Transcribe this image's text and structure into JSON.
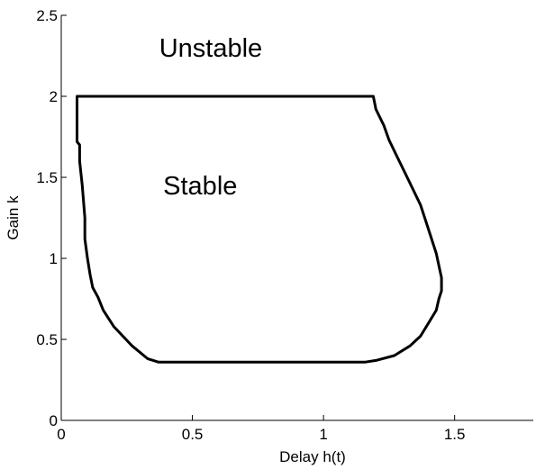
{
  "chart_data": {
    "type": "line",
    "title": "",
    "xlabel": "Delay h(t)",
    "ylabel": "Gain k",
    "xlim": [
      0,
      1.8
    ],
    "ylim": [
      0,
      2.5
    ],
    "xticks": [
      0,
      0.5,
      1,
      1.5
    ],
    "xtick_labels": [
      "0",
      "0.5",
      "1",
      "1.5"
    ],
    "yticks": [
      0,
      0.5,
      1,
      1.5,
      2,
      2.5
    ],
    "ytick_labels": [
      "0",
      "0.5",
      "1",
      "1.5",
      "2",
      "2.5"
    ],
    "grid": false,
    "legend": false,
    "colors": {
      "line": "#000000",
      "axes": "#000000",
      "background": "#ffffff"
    },
    "series": [
      {
        "x": [
          0.07,
          0.07,
          0.06,
          0.06,
          1.19,
          1.2,
          1.23,
          1.25,
          1.28,
          1.31,
          1.34,
          1.37,
          1.4,
          1.43,
          1.45,
          1.45,
          1.44,
          1.43,
          1.4,
          1.37,
          1.33,
          1.27,
          1.2,
          1.16,
          0.37,
          0.33,
          0.27,
          0.2,
          0.16,
          0.14,
          0.12,
          0.11,
          0.1,
          0.09,
          0.09,
          0.08
        ],
        "y": [
          1.6,
          1.7,
          1.72,
          2.0,
          2.0,
          1.92,
          1.82,
          1.73,
          1.63,
          1.53,
          1.43,
          1.33,
          1.18,
          1.03,
          0.88,
          0.8,
          0.75,
          0.68,
          0.6,
          0.52,
          0.46,
          0.4,
          0.37,
          0.36,
          0.36,
          0.38,
          0.46,
          0.58,
          0.68,
          0.76,
          0.82,
          0.9,
          1.0,
          1.12,
          1.25,
          1.45
        ]
      }
    ],
    "annotations": [
      {
        "text": "Unstable",
        "x": 0.57,
        "y": 2.3
      },
      {
        "text": "Stable",
        "x": 0.53,
        "y": 1.45
      }
    ]
  }
}
